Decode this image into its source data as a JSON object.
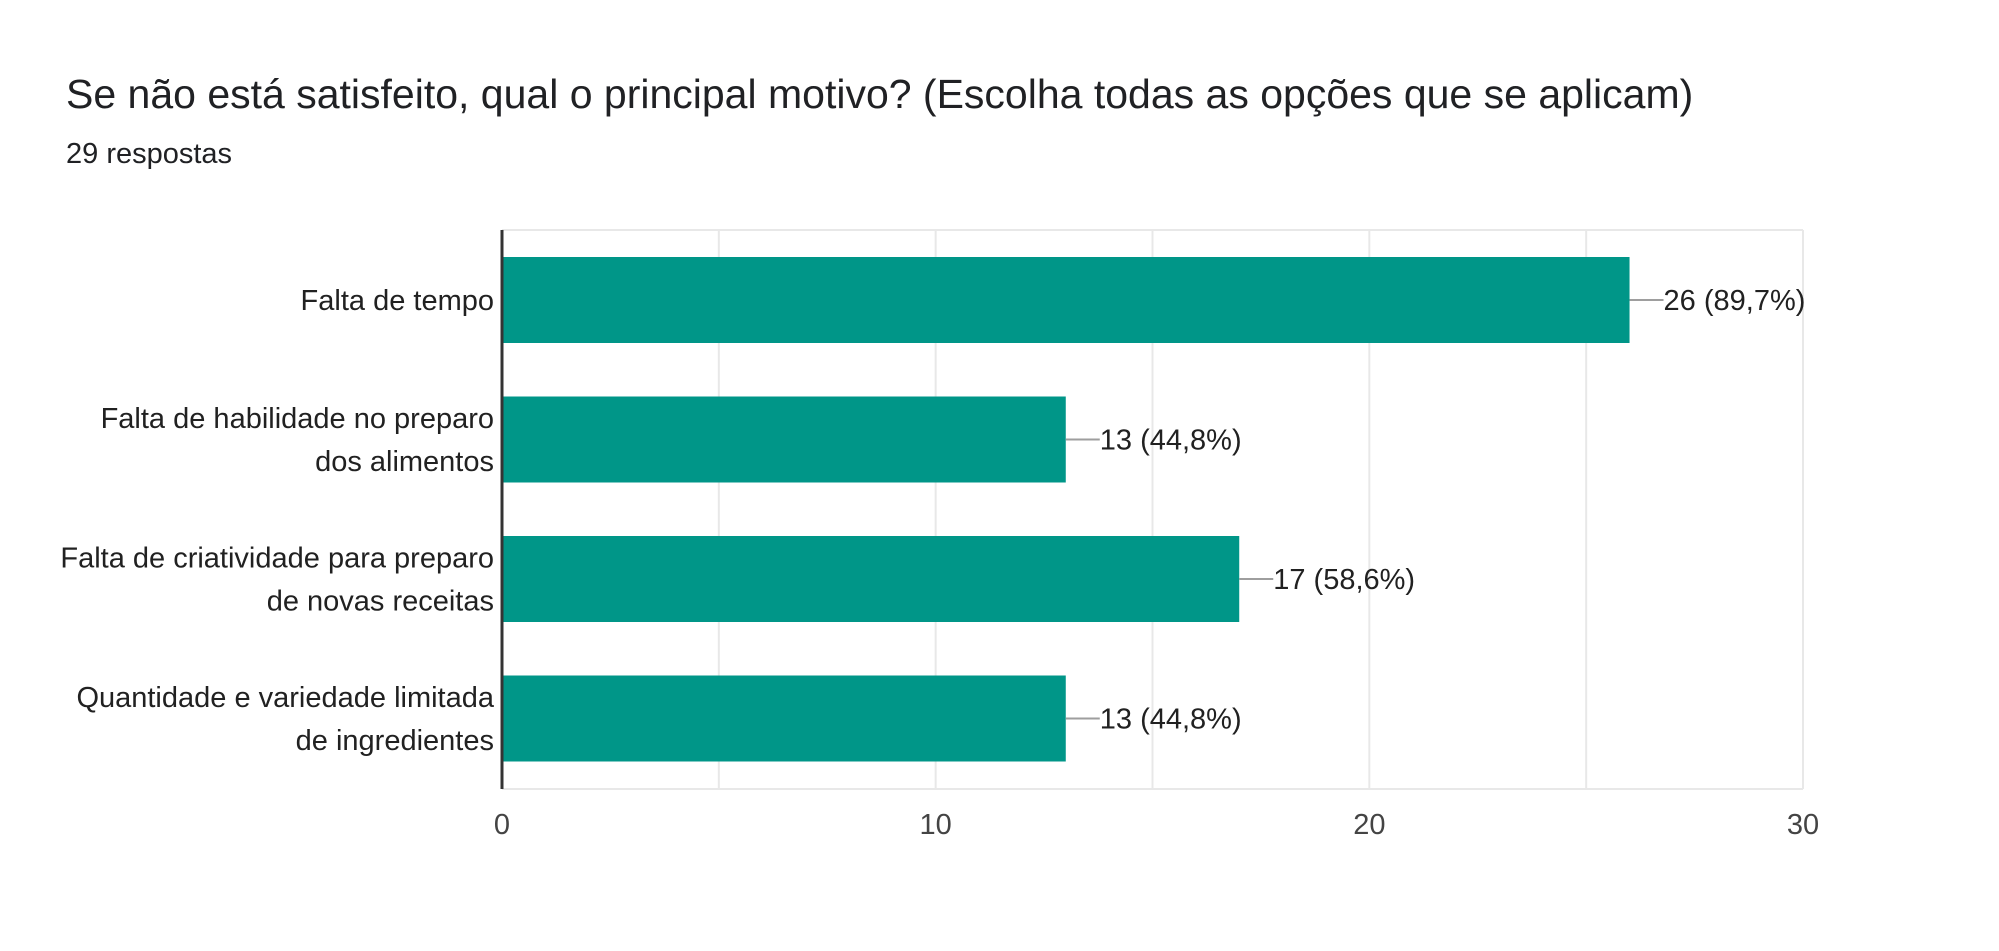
{
  "question": {
    "title": "Se não está satisfeito, qual o principal motivo? (Escolha todas as opções que se aplicam)",
    "responses": "29 respostas"
  },
  "colors": {
    "bar": "#009688",
    "axis": "#333333",
    "grid": "#e8e8e8",
    "connector": "#9e9e9e"
  },
  "chart_data": {
    "type": "bar",
    "orientation": "horizontal",
    "title": "",
    "xlabel": "",
    "ylabel": "",
    "categories": [
      [
        "Falta de tempo"
      ],
      [
        "Falta de habilidade no preparo",
        "dos alimentos"
      ],
      [
        "Falta de criatividade para preparo",
        "de novas receitas"
      ],
      [
        "Quantidade e variedade limitada",
        "de ingredientes"
      ]
    ],
    "values": [
      26,
      13,
      17,
      13
    ],
    "value_labels": [
      "26 (89,7%)",
      "13 (44,8%)",
      "17 (58,6%)",
      "13 (44,8%)"
    ],
    "xlim": [
      0,
      30
    ],
    "ticks": [
      0,
      10,
      20,
      30
    ],
    "tick_labels": [
      "0",
      "10",
      "20",
      "30"
    ],
    "grid": true
  }
}
